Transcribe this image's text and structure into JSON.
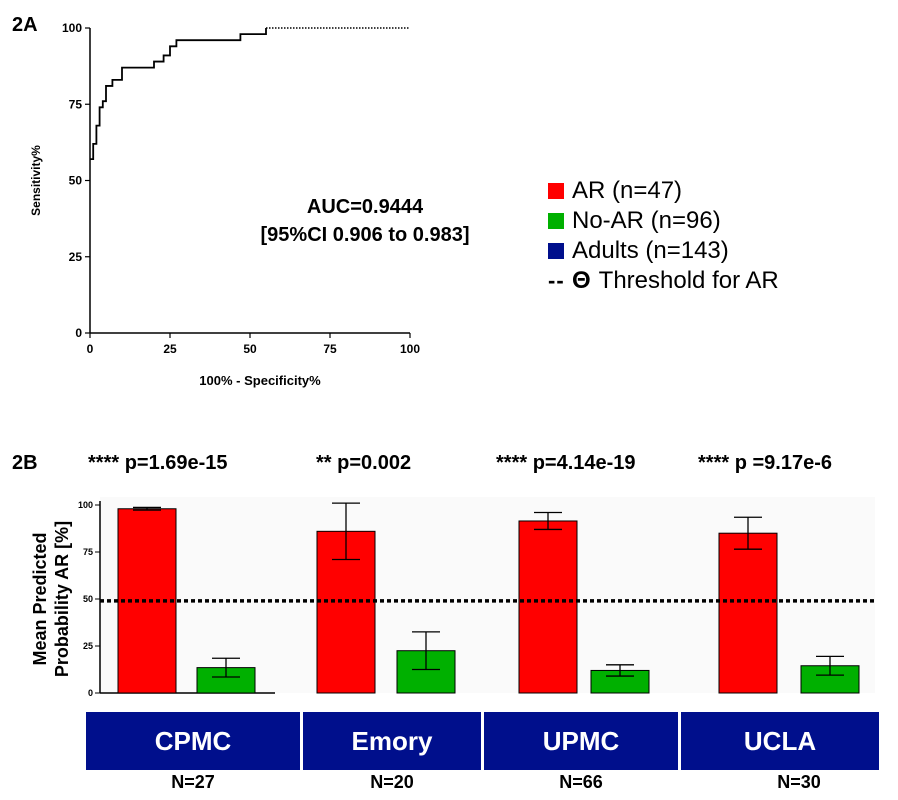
{
  "panel_a": {
    "label": "2A",
    "auc_line1": "AUC=0.9444",
    "auc_line2": "[95%CI 0.906 to 0.983]"
  },
  "panel_b": {
    "label": "2B",
    "significance": [
      {
        "stars": "****",
        "p": "p=1.69e-15"
      },
      {
        "stars": "**",
        "p": "p=0.002"
      },
      {
        "stars": "****",
        "p": "p=4.14e-19"
      },
      {
        "stars": "****",
        "p": "p =9.17e-6"
      }
    ],
    "sites": [
      {
        "name": "CPMC",
        "n": "N=27"
      },
      {
        "name": "Emory",
        "n": "N=20"
      },
      {
        "name": "UPMC",
        "n": "N=66"
      },
      {
        "name": "UCLA",
        "n": "N=30"
      }
    ]
  },
  "legend": {
    "items": [
      {
        "label": "AR (n=47)",
        "color": "#ff0000"
      },
      {
        "label": "No-AR (n=96)",
        "color": "#00b000"
      },
      {
        "label": "Adults (n=143)",
        "color": "#000f8c"
      }
    ],
    "threshold_symbol": "--",
    "threshold_theta": "Θ",
    "threshold_label": "Threshold for AR"
  },
  "chart_data": [
    {
      "type": "line",
      "xlabel": "100% - Specificity%",
      "ylabel": "Sensitivity%",
      "xlim": [
        0,
        100
      ],
      "ylim": [
        0,
        100
      ],
      "xticks": [
        "0",
        "25",
        "50",
        "75",
        "100"
      ],
      "yticks": [
        "0",
        "25",
        "50",
        "75",
        "100"
      ],
      "grid": false,
      "series": [
        {
          "x": [
            0,
            1,
            1,
            2,
            2,
            3,
            3,
            4,
            4,
            5,
            5,
            7,
            7,
            10,
            10,
            13,
            13,
            20,
            20,
            23,
            23,
            25,
            25,
            27,
            27,
            47,
            47,
            55,
            55
          ],
          "y": [
            57,
            57,
            62,
            62,
            68,
            68,
            74,
            74,
            76,
            76,
            81,
            81,
            83,
            83,
            87,
            87,
            87,
            87,
            89,
            89,
            91,
            91,
            94,
            94,
            96,
            96,
            98,
            98,
            100
          ]
        },
        {
          "x": [
            55,
            100
          ],
          "y": [
            100,
            100
          ]
        }
      ]
    },
    {
      "type": "bar",
      "ylabel": "Mean Predicted Probability AR [%]",
      "ylim": [
        0,
        100
      ],
      "yticks": [
        "0",
        "25",
        "50",
        "75",
        "100"
      ],
      "categories": [
        "CPMC",
        "Emory",
        "UPMC",
        "UCLA"
      ],
      "threshold": 49,
      "series": [
        {
          "name": "AR",
          "color": "#ff0000",
          "values": [
            98,
            86,
            91.5,
            85
          ],
          "error": [
            0.7,
            15,
            4.5,
            8.5
          ]
        },
        {
          "name": "No-AR",
          "color": "#00b000",
          "values": [
            13.5,
            22.5,
            12,
            14.5
          ],
          "error": [
            5,
            10,
            3,
            5
          ]
        }
      ]
    }
  ]
}
